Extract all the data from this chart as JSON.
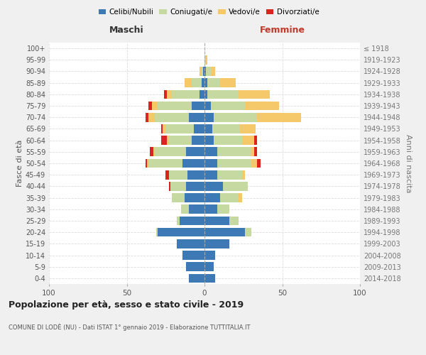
{
  "age_groups": [
    "0-4",
    "5-9",
    "10-14",
    "15-19",
    "20-24",
    "25-29",
    "30-34",
    "35-39",
    "40-44",
    "45-49",
    "50-54",
    "55-59",
    "60-64",
    "65-69",
    "70-74",
    "75-79",
    "80-84",
    "85-89",
    "90-94",
    "95-99",
    "100+"
  ],
  "birth_years": [
    "2014-2018",
    "2009-2013",
    "2004-2008",
    "1999-2003",
    "1994-1998",
    "1989-1993",
    "1984-1988",
    "1979-1983",
    "1974-1978",
    "1969-1973",
    "1964-1968",
    "1959-1963",
    "1954-1958",
    "1949-1953",
    "1944-1948",
    "1939-1943",
    "1934-1938",
    "1929-1933",
    "1924-1928",
    "1919-1923",
    "≤ 1918"
  ],
  "colors": {
    "celibi": "#3d7ab5",
    "coniugati": "#c5d9a0",
    "vedovi": "#f5c96a",
    "divorziati": "#d9251d"
  },
  "maschi": {
    "celibi": [
      10,
      12,
      14,
      18,
      30,
      16,
      10,
      13,
      12,
      11,
      14,
      12,
      8,
      7,
      10,
      8,
      3,
      2,
      1,
      0,
      0
    ],
    "coniugati": [
      0,
      0,
      0,
      0,
      1,
      2,
      5,
      8,
      10,
      12,
      22,
      20,
      15,
      18,
      22,
      22,
      18,
      6,
      1,
      0,
      0
    ],
    "vedovi": [
      0,
      0,
      0,
      0,
      0,
      0,
      0,
      0,
      0,
      0,
      1,
      1,
      1,
      2,
      4,
      4,
      3,
      5,
      1,
      0,
      0
    ],
    "divorziati": [
      0,
      0,
      0,
      0,
      0,
      0,
      0,
      0,
      1,
      2,
      1,
      2,
      4,
      1,
      2,
      2,
      2,
      0,
      0,
      0,
      0
    ]
  },
  "femmine": {
    "celibi": [
      7,
      6,
      7,
      16,
      26,
      16,
      8,
      10,
      12,
      8,
      8,
      8,
      6,
      5,
      6,
      4,
      2,
      2,
      1,
      0,
      0
    ],
    "coniugati": [
      0,
      0,
      0,
      0,
      4,
      6,
      8,
      12,
      16,
      16,
      22,
      22,
      18,
      18,
      28,
      22,
      20,
      8,
      3,
      1,
      0
    ],
    "vedovi": [
      0,
      0,
      0,
      0,
      0,
      0,
      0,
      2,
      0,
      2,
      4,
      2,
      8,
      10,
      28,
      22,
      20,
      10,
      3,
      1,
      0
    ],
    "divorziati": [
      0,
      0,
      0,
      0,
      0,
      0,
      0,
      0,
      0,
      0,
      2,
      2,
      2,
      0,
      0,
      0,
      0,
      0,
      0,
      0,
      0
    ]
  },
  "xlim": 100,
  "title": "Popolazione per età, sesso e stato civile - 2019",
  "subtitle": "COMUNE DI LODÈ (NU) - Dati ISTAT 1° gennaio 2019 - Elaborazione TUTTITALIA.IT",
  "xlabel_left": "Maschi",
  "xlabel_right": "Femmine",
  "ylabel_left": "Fasce di età",
  "ylabel_right": "Anni di nascita",
  "legend_labels": [
    "Celibi/Nubili",
    "Coniugati/e",
    "Vedovi/e",
    "Divorziati/e"
  ],
  "bg_color": "#f0f0f0",
  "plot_bg": "#ffffff"
}
